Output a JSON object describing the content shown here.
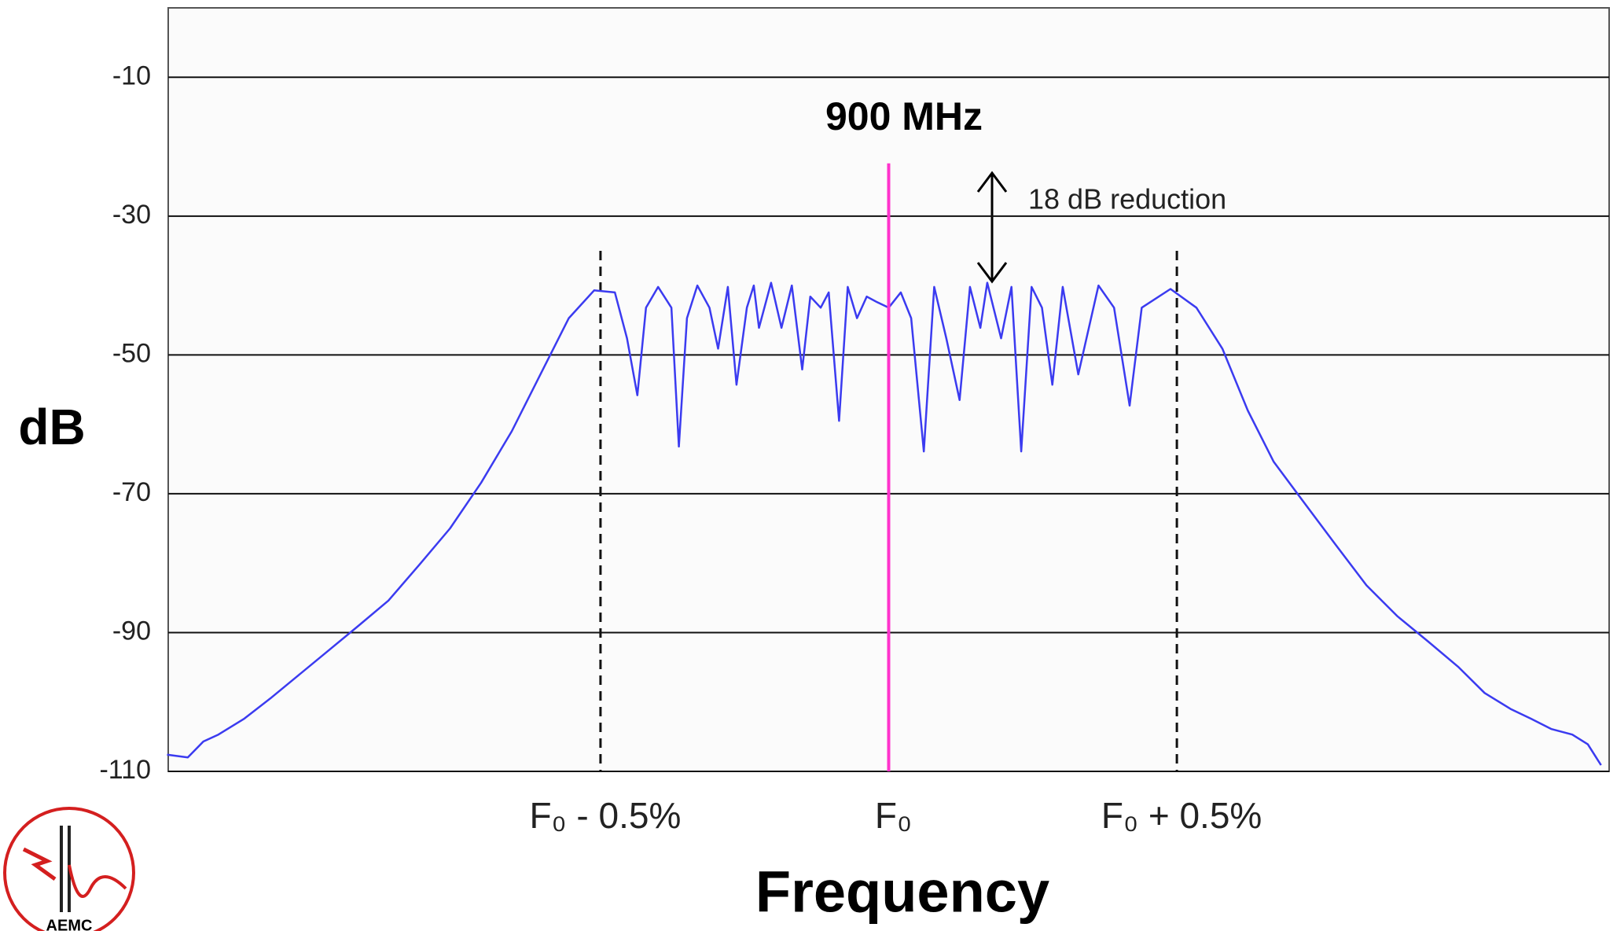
{
  "chart_data": {
    "type": "line",
    "title": "900 MHz",
    "annotation": "18 dB reduction",
    "y_label": "dB",
    "x_label": "Frequency",
    "xlim": [
      -1.25,
      1.25
    ],
    "ylim": [
      -110,
      0
    ],
    "xticks": [
      {
        "value": -0.5,
        "label": "F₀ - 0.5%"
      },
      {
        "value": 0,
        "label": "F₀"
      },
      {
        "value": 0.5,
        "label": "F₀ + 0.5%"
      }
    ],
    "yticks": [
      -10,
      -30,
      -50,
      -70,
      -90,
      -110
    ],
    "grid": true,
    "series": [
      {
        "color": "#3b3bf0",
        "x": [
          -1.252,
          -1.216,
          -1.189,
          -1.163,
          -1.118,
          -1.073,
          -1.029,
          -0.975,
          -0.921,
          -0.868,
          -0.814,
          -0.761,
          -0.707,
          -0.654,
          -0.6,
          -0.555,
          -0.511,
          -0.475,
          -0.454,
          -0.436,
          -0.421,
          -0.4,
          -0.377,
          -0.364,
          -0.35,
          -0.332,
          -0.311,
          -0.296,
          -0.279,
          -0.264,
          -0.246,
          -0.234,
          -0.225,
          -0.204,
          -0.186,
          -0.168,
          -0.15,
          -0.136,
          -0.118,
          -0.104,
          -0.086,
          -0.071,
          -0.055,
          -0.038,
          -0.02,
          0,
          0.021,
          0.039,
          0.061,
          0.079,
          0.1,
          0.123,
          0.141,
          0.159,
          0.171,
          0.195,
          0.213,
          0.23,
          0.248,
          0.266,
          0.284,
          0.302,
          0.329,
          0.364,
          0.391,
          0.418,
          0.439,
          0.489,
          0.534,
          0.579,
          0.623,
          0.668,
          0.721,
          0.775,
          0.829,
          0.882,
          0.936,
          0.989,
          1.034,
          1.079,
          1.114,
          1.15,
          1.186,
          1.213,
          1.236
        ],
        "values": [
          -107.6,
          -108,
          -105.7,
          -104.7,
          -102.4,
          -99.5,
          -96.5,
          -92.8,
          -89.1,
          -85.4,
          -80.2,
          -75,
          -68.4,
          -61,
          -52.1,
          -44.7,
          -40.7,
          -41,
          -47.6,
          -55.8,
          -43.2,
          -40.2,
          -43.2,
          -63.2,
          -44.7,
          -40,
          -43.2,
          -49.1,
          -40.2,
          -54.3,
          -43.2,
          -40,
          -46.1,
          -39.6,
          -46.1,
          -40,
          -52.1,
          -41.6,
          -43.2,
          -41,
          -59.5,
          -40.2,
          -44.7,
          -41.6,
          -42.4,
          -43.2,
          -41,
          -44.7,
          -63.9,
          -40.2,
          -47.6,
          -56.5,
          -40.2,
          -46.1,
          -39.6,
          -47.6,
          -40.2,
          -63.9,
          -40.2,
          -43.2,
          -54.3,
          -40.2,
          -52.8,
          -40,
          -43.2,
          -57.3,
          -43.2,
          -40.5,
          -43.2,
          -49.1,
          -58,
          -65.4,
          -71.3,
          -77.3,
          -83.2,
          -87.6,
          -91.3,
          -95,
          -98.7,
          -101,
          -102.4,
          -103.9,
          -104.7,
          -106.1,
          -109.1
        ]
      },
      {
        "color": "#ff33cc",
        "x": [
          0,
          0
        ],
        "values": [
          -22.4,
          -110
        ]
      }
    ]
  },
  "logo_text": "AEMC"
}
